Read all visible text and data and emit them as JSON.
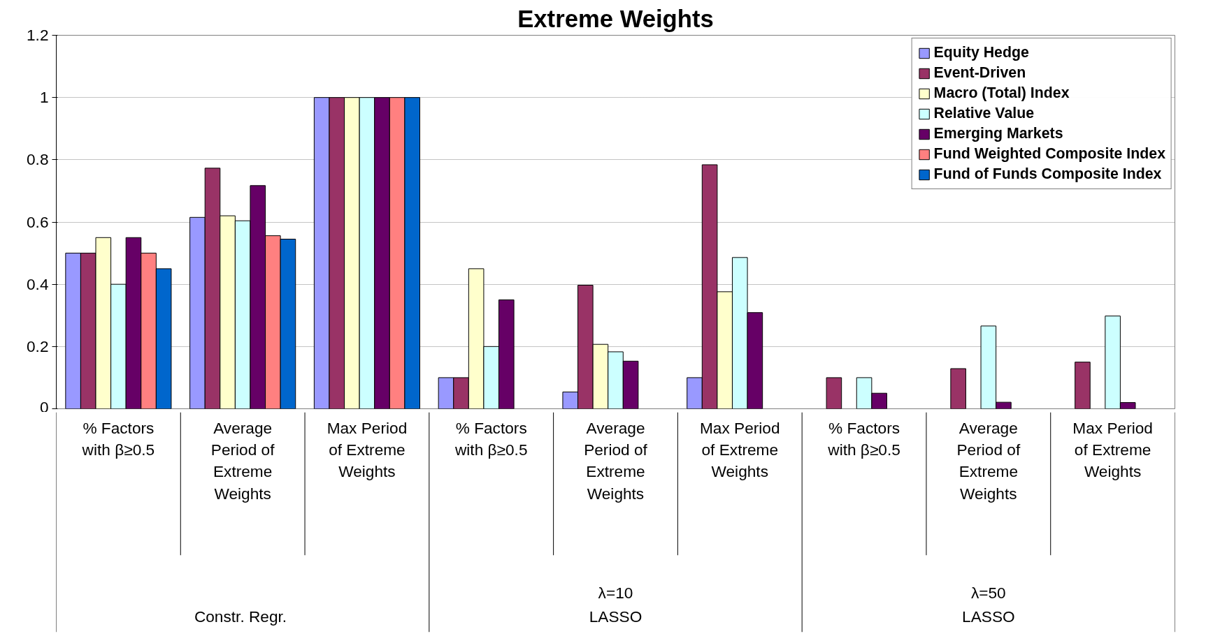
{
  "chart_data": {
    "type": "bar",
    "title": "Extreme Weights",
    "categories": [
      "% Factors with β≥0.5",
      "Average Period of Extreme Weights",
      "Max Period of Extreme Weights",
      "% Factors with β≥0.5",
      "Average Period of Extreme Weights",
      "Max Period of Extreme Weights",
      "% Factors with β≥0.5",
      "Average Period of Extreme Weights",
      "Max Period of Extreme Weights"
    ],
    "series": [
      {
        "name": "Equity Hedge",
        "color": "#9999ff",
        "values": [
          0.5,
          0.615,
          1,
          0.1,
          0.054,
          0.1,
          null,
          null,
          null
        ]
      },
      {
        "name": "Event-Driven",
        "color": "#993366",
        "values": [
          0.5,
          0.773,
          1,
          0.1,
          0.397,
          0.784,
          0.1,
          0.129,
          0.15
        ]
      },
      {
        "name": "Macro (Total) Index",
        "color": "#ffffcc",
        "values": [
          0.55,
          0.62,
          1,
          0.45,
          0.207,
          0.376,
          null,
          null,
          null
        ]
      },
      {
        "name": "Relative Value",
        "color": "#ccffff",
        "values": [
          0.4,
          0.604,
          1,
          0.2,
          0.183,
          0.486,
          0.1,
          0.266,
          0.298
        ]
      },
      {
        "name": "Emerging Markets",
        "color": "#660066",
        "values": [
          0.55,
          0.717,
          1,
          0.35,
          0.153,
          0.309,
          0.05,
          0.021,
          0.02
        ]
      },
      {
        "name": "Fund Weighted Composite Index",
        "color": "#ff8080",
        "values": [
          0.5,
          0.556,
          1,
          null,
          null,
          null,
          null,
          null,
          null
        ]
      },
      {
        "name": "Fund of Funds Composite Index",
        "color": "#0066cc",
        "values": [
          0.45,
          0.545,
          1,
          null,
          null,
          null,
          null,
          null,
          null
        ]
      }
    ],
    "annotations": [
      "λ=10",
      "λ=50",
      "Constr.  Regr.",
      "LASSO",
      "LASSO"
    ],
    "ylim": [
      0,
      1.2
    ],
    "yticks": [
      0,
      0.2,
      0.4,
      0.6,
      0.8,
      1,
      1.2
    ],
    "grid": "y",
    "legend": "top right"
  }
}
